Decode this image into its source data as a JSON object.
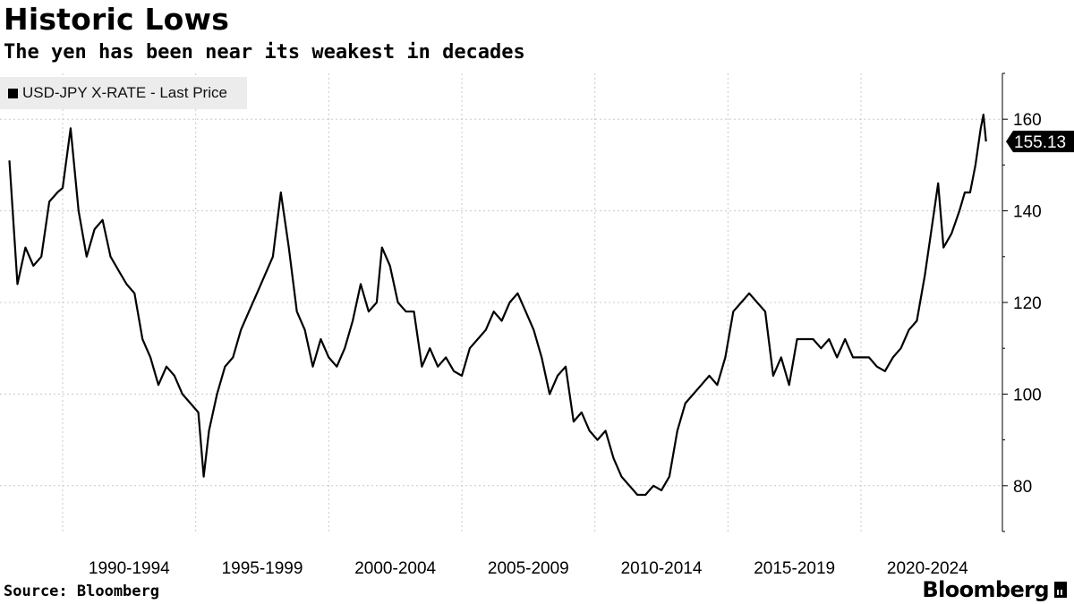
{
  "header": {
    "title": "Historic Lows",
    "subtitle": "The yen has been near its weakest in decades"
  },
  "legend": {
    "label": "USD-JPY X-RATE - Last Price",
    "color": "#000000"
  },
  "footer": {
    "source": "Source: Bloomberg",
    "logo": "Bloomberg"
  },
  "chart_data": {
    "type": "line",
    "title": "Historic Lows",
    "subtitle": "The yen has been near its weakest in decades",
    "series": [
      {
        "name": "USD-JPY X-RATE - Last Price",
        "color": "#000000",
        "x": [
          1988.0,
          1988.3,
          1988.6,
          1988.9,
          1989.2,
          1989.5,
          1989.8,
          1990.0,
          1990.3,
          1990.6,
          1990.9,
          1991.2,
          1991.5,
          1991.8,
          1992.1,
          1992.4,
          1992.7,
          1993.0,
          1993.3,
          1993.6,
          1993.9,
          1994.2,
          1994.5,
          1994.8,
          1995.1,
          1995.3,
          1995.5,
          1995.8,
          1996.1,
          1996.4,
          1996.7,
          1997.0,
          1997.3,
          1997.6,
          1997.9,
          1998.2,
          1998.5,
          1998.8,
          1999.1,
          1999.4,
          1999.7,
          2000.0,
          2000.3,
          2000.6,
          2000.9,
          2001.2,
          2001.5,
          2001.8,
          2002.0,
          2002.3,
          2002.6,
          2002.9,
          2003.2,
          2003.5,
          2003.8,
          2004.1,
          2004.4,
          2004.7,
          2005.0,
          2005.3,
          2005.6,
          2005.9,
          2006.2,
          2006.5,
          2006.8,
          2007.1,
          2007.4,
          2007.7,
          2008.0,
          2008.3,
          2008.6,
          2008.9,
          2009.2,
          2009.5,
          2009.8,
          2010.1,
          2010.4,
          2010.7,
          2011.0,
          2011.3,
          2011.6,
          2011.9,
          2012.2,
          2012.5,
          2012.8,
          2013.1,
          2013.4,
          2013.7,
          2014.0,
          2014.3,
          2014.6,
          2014.9,
          2015.2,
          2015.5,
          2015.8,
          2016.1,
          2016.4,
          2016.7,
          2017.0,
          2017.3,
          2017.6,
          2017.9,
          2018.2,
          2018.5,
          2018.8,
          2019.1,
          2019.4,
          2019.7,
          2020.0,
          2020.3,
          2020.6,
          2020.9,
          2021.2,
          2021.5,
          2021.8,
          2022.1,
          2022.4,
          2022.7,
          2022.9,
          2023.1,
          2023.4,
          2023.7,
          2023.9,
          2024.1,
          2024.3,
          2024.5,
          2024.6,
          2024.7
        ],
        "values": [
          151,
          124,
          132,
          128,
          130,
          142,
          144,
          145,
          158,
          140,
          130,
          136,
          138,
          130,
          127,
          124,
          122,
          112,
          108,
          102,
          106,
          104,
          100,
          98,
          96,
          82,
          92,
          100,
          106,
          108,
          114,
          118,
          122,
          126,
          130,
          144,
          132,
          118,
          114,
          106,
          112,
          108,
          106,
          110,
          116,
          124,
          118,
          120,
          132,
          128,
          120,
          118,
          118,
          106,
          110,
          106,
          108,
          105,
          104,
          110,
          112,
          114,
          118,
          116,
          120,
          122,
          118,
          114,
          108,
          100,
          104,
          106,
          94,
          96,
          92,
          90,
          92,
          86,
          82,
          80,
          78,
          78,
          80,
          79,
          82,
          92,
          98,
          100,
          102,
          104,
          102,
          108,
          118,
          120,
          122,
          120,
          118,
          104,
          108,
          102,
          112,
          112,
          112,
          110,
          112,
          108,
          112,
          108,
          108,
          108,
          106,
          105,
          108,
          110,
          114,
          116,
          126,
          138,
          146,
          132,
          135,
          140,
          144,
          144,
          150,
          158,
          161,
          155.13
        ]
      }
    ],
    "xlabel": "",
    "ylabel": "",
    "xlim": [
      1988.0,
      2026.0
    ],
    "ylim": [
      70,
      170
    ],
    "y_ticks": [
      80,
      100,
      120,
      140,
      160
    ],
    "x_tick_labels": [
      "1990-1994",
      "1995-1999",
      "2000-2004",
      "2005-2009",
      "2010-2014",
      "2015-2019",
      "2020-2024"
    ],
    "x_tick_label_centers": [
      1992.5,
      1997.5,
      2002.5,
      2007.5,
      2012.5,
      2017.5,
      2022.5
    ],
    "x_gridlines": [
      1990,
      1995,
      2000,
      2005,
      2010,
      2015,
      2020
    ],
    "last_value_label": "155.13",
    "grid": true,
    "legend_position": "top-left"
  }
}
